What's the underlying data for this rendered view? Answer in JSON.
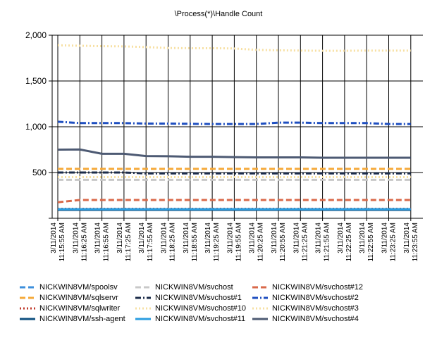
{
  "chart_data": {
    "type": "line",
    "title": "\\Process(*)\\Handle Count",
    "xlabel": "",
    "ylabel": "",
    "ylim": [
      0,
      2000
    ],
    "yticks": [
      0,
      500,
      1000,
      1500,
      2000
    ],
    "ytick_labels": [
      "",
      "500",
      "1,000",
      "1,500",
      "2,000"
    ],
    "grid": true,
    "legend_position": "bottom",
    "x": [
      [
        "3/11/2014",
        "11:15:55 AM"
      ],
      [
        "3/11/2014",
        "11:16:25 AM"
      ],
      [
        "3/11/2014",
        "11:16:55 AM"
      ],
      [
        "3/11/2014",
        "11:17:25 AM"
      ],
      [
        "3/11/2014",
        "11:17:55 AM"
      ],
      [
        "3/11/2014",
        "11:18:25 AM"
      ],
      [
        "3/11/2014",
        "11:18:55 AM"
      ],
      [
        "3/11/2014",
        "11:19:25 AM"
      ],
      [
        "3/11/2014",
        "11:19:55 AM"
      ],
      [
        "3/11/2014",
        "11:20:25 AM"
      ],
      [
        "3/11/2014",
        "11:20:55 AM"
      ],
      [
        "3/11/2014",
        "11:21:25 AM"
      ],
      [
        "3/11/2014",
        "11:21:55 AM"
      ],
      [
        "3/11/2014",
        "11:22:25 AM"
      ],
      [
        "3/11/2014",
        "11:22:55 AM"
      ],
      [
        "3/11/2014",
        "11:23:25 AM"
      ],
      [
        "3/11/2014",
        "11:23:55 AM"
      ]
    ],
    "series": [
      {
        "name": "NICKWIN8VM/spoolsv",
        "color": "#3c8fdc",
        "style": "dashed",
        "values": [
          96,
          96,
          96,
          96,
          96,
          96,
          96,
          96,
          96,
          96,
          96,
          96,
          96,
          96,
          96,
          96,
          96
        ]
      },
      {
        "name": "NICKWIN8VM/sqlservr",
        "color": "#f5a93a",
        "style": "dashed",
        "values": [
          540,
          540,
          540,
          540,
          540,
          540,
          540,
          540,
          540,
          540,
          540,
          540,
          540,
          540,
          540,
          540,
          540
        ]
      },
      {
        "name": "NICKWIN8VM/sqlwriter",
        "color": "#c0392b",
        "style": "dotted",
        "values": [
          104,
          104,
          104,
          104,
          104,
          104,
          104,
          104,
          104,
          104,
          104,
          104,
          104,
          104,
          104,
          104,
          104
        ]
      },
      {
        "name": "NICKWIN8VM/ssh-agent",
        "color": "#0e4f7f",
        "style": "solid",
        "values": [
          92,
          92,
          92,
          92,
          92,
          92,
          92,
          92,
          92,
          92,
          92,
          92,
          92,
          92,
          92,
          92,
          92
        ]
      },
      {
        "name": "NICKWIN8VM/svchost",
        "color": "#c8c8c8",
        "style": "dashed",
        "values": [
          420,
          420,
          420,
          420,
          420,
          420,
          420,
          420,
          420,
          420,
          420,
          420,
          420,
          420,
          420,
          420,
          420
        ]
      },
      {
        "name": "NICKWIN8VM/svchost#1",
        "color": "#1c2c4a",
        "style": "dashdot",
        "values": [
          500,
          500,
          500,
          500,
          490,
          490,
          490,
          490,
          490,
          490,
          490,
          490,
          490,
          490,
          490,
          490,
          490
        ]
      },
      {
        "name": "NICKWIN8VM/svchost#10",
        "color": "#f7e0a3",
        "style": "dotted",
        "values": [
          450,
          450,
          450,
          450,
          450,
          450,
          450,
          450,
          450,
          450,
          450,
          450,
          450,
          450,
          450,
          450,
          450
        ]
      },
      {
        "name": "NICKWIN8VM/svchost#11",
        "color": "#2a9de0",
        "style": "solid",
        "values": [
          100,
          100,
          100,
          100,
          100,
          100,
          100,
          100,
          100,
          100,
          100,
          100,
          100,
          100,
          100,
          100,
          100
        ]
      },
      {
        "name": "NICKWIN8VM/svchost#12",
        "color": "#d9694a",
        "style": "dashed",
        "values": [
          175,
          200,
          200,
          200,
          200,
          200,
          200,
          200,
          200,
          200,
          200,
          200,
          200,
          200,
          200,
          200,
          200
        ]
      },
      {
        "name": "NICKWIN8VM/svchost#2",
        "color": "#1f4fc0",
        "style": "dashdot",
        "values": [
          1055,
          1040,
          1040,
          1040,
          1035,
          1035,
          1032,
          1030,
          1030,
          1030,
          1045,
          1045,
          1040,
          1040,
          1040,
          1030,
          1030
        ]
      },
      {
        "name": "NICKWIN8VM/svchost#3",
        "color": "#f7e0a3",
        "style": "dotted",
        "values": [
          1890,
          1885,
          1880,
          1878,
          1870,
          1860,
          1858,
          1858,
          1855,
          1840,
          1835,
          1832,
          1830,
          1830,
          1832,
          1832,
          1832
        ]
      },
      {
        "name": "NICKWIN8VM/svchost#4",
        "color": "#4d5a73",
        "style": "solid",
        "values": [
          750,
          752,
          705,
          705,
          680,
          678,
          672,
          672,
          668,
          665,
          665,
          665,
          662,
          662,
          662,
          662,
          662
        ]
      }
    ]
  }
}
